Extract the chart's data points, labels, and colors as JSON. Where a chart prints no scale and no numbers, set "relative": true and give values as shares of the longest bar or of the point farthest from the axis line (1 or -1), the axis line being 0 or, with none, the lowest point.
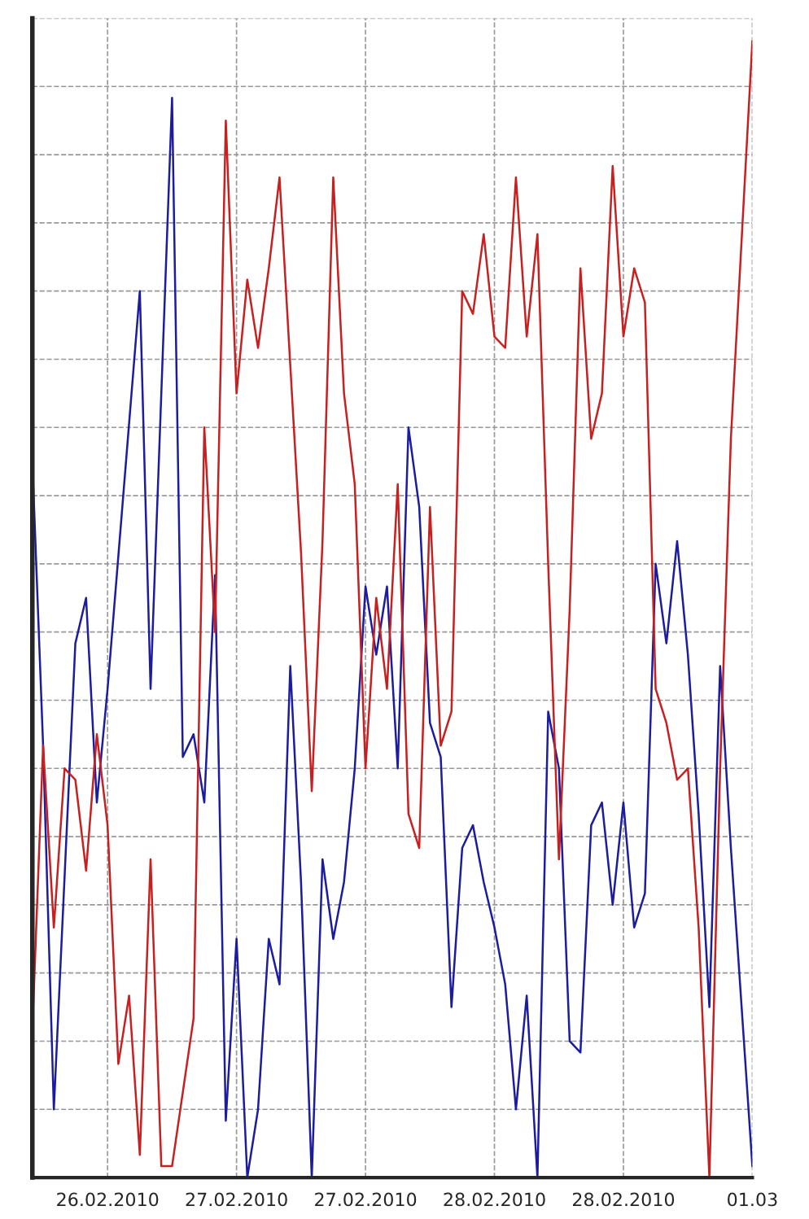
{
  "chart_data": {
    "type": "line",
    "relative": true,
    "grid": true,
    "line_style": "solid",
    "xlim": [
      "2010-02-26T05:00",
      "2010-03-01T00:00"
    ],
    "xticks": [
      {
        "value": "2010-02-26T12:00",
        "label": "26.02.2010"
      },
      {
        "value": "2010-02-27T00:00",
        "label": "27.02.2010"
      },
      {
        "value": "2010-02-27T12:00",
        "label": "27.02.2010"
      },
      {
        "value": "2010-02-28T00:00",
        "label": "28.02.2010"
      },
      {
        "value": "2010-02-28T12:00",
        "label": "28.02.2010"
      },
      {
        "value": "2010-03-01T00:00",
        "label": "01.03"
      }
    ],
    "series": [
      {
        "color": "#1c1c9e",
        "x": [
          "2010-02-26T05:00",
          "2010-02-26T06:00",
          "2010-02-26T07:00",
          "2010-02-26T09:00",
          "2010-02-26T10:00",
          "2010-02-26T11:00",
          "2010-02-26T12:00",
          "2010-02-26T15:00",
          "2010-02-26T16:00",
          "2010-02-26T18:00",
          "2010-02-26T19:00",
          "2010-02-26T20:00",
          "2010-02-26T21:00",
          "2010-02-26T22:00",
          "2010-02-26T23:00",
          "2010-02-27T00:00",
          "2010-02-27T01:00",
          "2010-02-27T02:00",
          "2010-02-27T03:00",
          "2010-02-27T04:00",
          "2010-02-27T05:00",
          "2010-02-27T06:00",
          "2010-02-27T07:00",
          "2010-02-27T08:00",
          "2010-02-27T09:00",
          "2010-02-27T10:00",
          "2010-02-27T11:00",
          "2010-02-27T12:00",
          "2010-02-27T13:00",
          "2010-02-27T14:00",
          "2010-02-27T15:00",
          "2010-02-27T16:00",
          "2010-02-27T17:00",
          "2010-02-27T18:00",
          "2010-02-27T19:00",
          "2010-02-27T20:00",
          "2010-02-27T21:00",
          "2010-02-27T22:00",
          "2010-02-27T23:00",
          "2010-02-28T00:00",
          "2010-02-28T01:00",
          "2010-02-28T02:00",
          "2010-02-28T03:00",
          "2010-02-28T04:00",
          "2010-02-28T05:00",
          "2010-02-28T06:00",
          "2010-02-28T07:00",
          "2010-02-28T08:00",
          "2010-02-28T09:00",
          "2010-02-28T10:00",
          "2010-02-28T11:00",
          "2010-02-28T12:00",
          "2010-02-28T13:00",
          "2010-02-28T14:00",
          "2010-02-28T15:00",
          "2010-02-28T16:00",
          "2010-02-28T17:00",
          "2010-02-28T18:00",
          "2010-02-28T19:00",
          "2010-02-28T20:00",
          "2010-02-28T21:00",
          "2010-02-28T22:00",
          "2010-03-01T00:00"
        ],
        "values": [
          0.63,
          0.38,
          0.06,
          0.47,
          0.51,
          0.33,
          0.43,
          0.78,
          0.43,
          0.95,
          0.37,
          0.39,
          0.33,
          0.53,
          0.05,
          0.21,
          0.0,
          0.06,
          0.21,
          0.17,
          0.45,
          0.26,
          0.0,
          0.28,
          0.21,
          0.26,
          0.36,
          0.52,
          0.46,
          0.52,
          0.36,
          0.66,
          0.59,
          0.4,
          0.37,
          0.15,
          0.29,
          0.31,
          0.26,
          0.22,
          0.17,
          0.06,
          0.16,
          0.0,
          0.41,
          0.36,
          0.12,
          0.11,
          0.31,
          0.33,
          0.24,
          0.33,
          0.22,
          0.25,
          0.54,
          0.47,
          0.56,
          0.46,
          0.32,
          0.15,
          0.45,
          0.29,
          0.01
        ]
      },
      {
        "color": "#c62020",
        "x": [
          "2010-02-26T05:00",
          "2010-02-26T06:00",
          "2010-02-26T07:00",
          "2010-02-26T08:00",
          "2010-02-26T09:00",
          "2010-02-26T10:00",
          "2010-02-26T11:00",
          "2010-02-26T12:00",
          "2010-02-26T13:00",
          "2010-02-26T14:00",
          "2010-02-26T15:00",
          "2010-02-26T16:00",
          "2010-02-26T17:00",
          "2010-02-26T18:00",
          "2010-02-26T20:00",
          "2010-02-26T21:00",
          "2010-02-26T22:00",
          "2010-02-26T23:00",
          "2010-02-27T00:00",
          "2010-02-27T01:00",
          "2010-02-27T02:00",
          "2010-02-27T03:00",
          "2010-02-27T04:00",
          "2010-02-27T06:00",
          "2010-02-27T07:00",
          "2010-02-27T08:00",
          "2010-02-27T09:00",
          "2010-02-27T10:00",
          "2010-02-27T11:00",
          "2010-02-27T12:00",
          "2010-02-27T13:00",
          "2010-02-27T14:00",
          "2010-02-27T15:00",
          "2010-02-27T16:00",
          "2010-02-27T17:00",
          "2010-02-27T18:00",
          "2010-02-27T19:00",
          "2010-02-27T20:00",
          "2010-02-27T21:00",
          "2010-02-27T22:00",
          "2010-02-27T23:00",
          "2010-02-28T00:00",
          "2010-02-28T01:00",
          "2010-02-28T02:00",
          "2010-02-28T03:00",
          "2010-02-28T04:00",
          "2010-02-28T05:00",
          "2010-02-28T06:00",
          "2010-02-28T07:00",
          "2010-02-28T08:00",
          "2010-02-28T09:00",
          "2010-02-28T10:00",
          "2010-02-28T11:00",
          "2010-02-28T12:00",
          "2010-02-28T13:00",
          "2010-02-28T14:00",
          "2010-02-28T15:00",
          "2010-02-28T16:00",
          "2010-02-28T17:00",
          "2010-02-28T18:00",
          "2010-02-28T19:00",
          "2010-02-28T20:00",
          "2010-02-28T21:00",
          "2010-02-28T22:00",
          "2010-03-01T00:00"
        ],
        "values": [
          0.13,
          0.38,
          0.22,
          0.36,
          0.35,
          0.27,
          0.39,
          0.31,
          0.1,
          0.16,
          0.02,
          0.28,
          0.01,
          0.01,
          0.14,
          0.66,
          0.48,
          0.93,
          0.69,
          0.79,
          0.73,
          0.8,
          0.88,
          0.55,
          0.34,
          0.56,
          0.88,
          0.69,
          0.61,
          0.36,
          0.51,
          0.43,
          0.61,
          0.32,
          0.29,
          0.59,
          0.38,
          0.41,
          0.78,
          0.76,
          0.83,
          0.74,
          0.73,
          0.88,
          0.74,
          0.83,
          0.54,
          0.28,
          0.5,
          0.8,
          0.65,
          0.69,
          0.89,
          0.74,
          0.8,
          0.77,
          0.43,
          0.4,
          0.35,
          0.36,
          0.22,
          0.0,
          0.36,
          0.65,
          1.0
        ]
      }
    ]
  }
}
